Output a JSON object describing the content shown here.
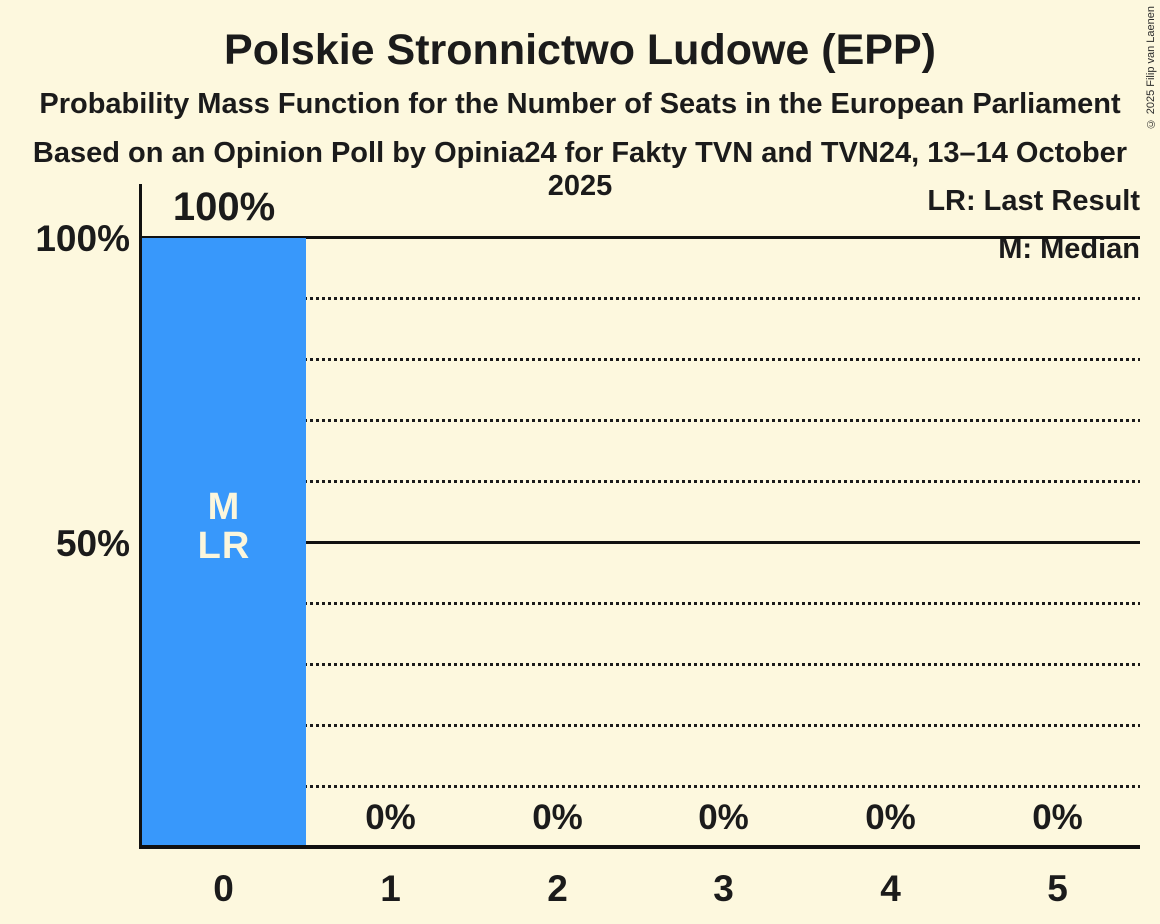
{
  "title": "Polskie Stronnictwo Ludowe (EPP)",
  "subtitle": "Probability Mass Function for the Number of Seats in the European Parliament",
  "source_line": "Based on an Opinion Poll by Opinia24 for Fakty TVN and TVN24, 13–14 October 2025",
  "copyright": "© 2025 Filip van Laenen",
  "legend": {
    "last_result": "LR: Last Result",
    "median": "M: Median"
  },
  "y_axis": {
    "top_label": "100%",
    "mid_label": "50%"
  },
  "colors": {
    "background": "#FDF8DE",
    "bar": "#3898FB",
    "text": "#1B1B1B",
    "bar_marker_text": "#FBF6DC"
  },
  "chart_data": {
    "type": "bar",
    "title": "Probability Mass Function for the Number of Seats in the European Parliament",
    "categories": [
      "0",
      "1",
      "2",
      "3",
      "4",
      "5"
    ],
    "values": [
      100,
      0,
      0,
      0,
      0,
      0
    ],
    "value_labels": [
      "100%",
      "0%",
      "0%",
      "0%",
      "0%",
      "0%"
    ],
    "ylim": [
      0,
      100
    ],
    "ytick_labels": [
      "100%",
      "50%"
    ],
    "solid_gridlines_percent": [
      100,
      50
    ],
    "dotted_gridlines_percent": [
      90,
      80,
      70,
      60,
      40,
      30,
      20,
      10
    ],
    "legend_position": "top-right",
    "annotations": {
      "median_marker": "M",
      "last_result_marker": "LR",
      "median_bar_index": 0,
      "last_result_bar_index": 0
    }
  }
}
